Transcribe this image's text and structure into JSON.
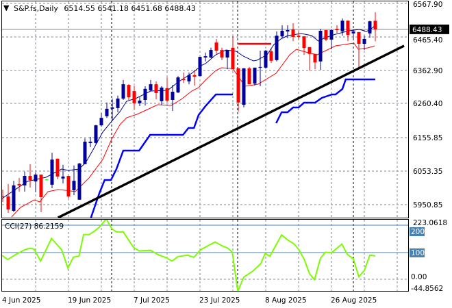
{
  "header": {
    "symbol_timeframe": "S&P.fs,Daily",
    "open": "6514.55",
    "high": "6541.18",
    "low": "6451.68",
    "close": "6488.43"
  },
  "price_axis": {
    "labels": [
      "6567.90",
      "6465.40",
      "6362.90",
      "6260.40",
      "6155.85",
      "6053.35",
      "5950.85"
    ],
    "current_price": "6488.43"
  },
  "cci_panel": {
    "label": "CCI(27) 86.2159",
    "max_label": "223.0618",
    "level_200": "200",
    "level_100": "100",
    "zero_label": "0.00",
    "min_label": "-44.8562"
  },
  "time_axis": {
    "labels": [
      "4 Jun 2025",
      "19 Jun 2025",
      "7 Jul 2025",
      "23 Jul 2025",
      "8 Aug 2025",
      "26 Aug 2025"
    ]
  },
  "colors": {
    "bull": "#00009c",
    "bear": "#ff0000",
    "doji": "#00ff00",
    "ma_fast": "#000080",
    "ma_slow": "#ff0000",
    "trail": "#0000ff",
    "trendline": "#000000",
    "resistance": "#ff0000",
    "cci": "#7cfc00",
    "level": "#4682b4"
  },
  "chart_data": {
    "type": "candlestick",
    "title": "S&P.fs,Daily",
    "ylim": [
      5950.85,
      6567.9
    ],
    "y_ticks": [
      6567.9,
      6465.4,
      6362.9,
      6260.4,
      6155.85,
      6053.35,
      5950.85
    ],
    "x_tick_indices": [
      0,
      12,
      24,
      36,
      48,
      60
    ],
    "grid": true,
    "ohlc": [
      [
        5976,
        5997,
        5959,
        5974
      ],
      [
        5976,
        6014,
        5926,
        5936
      ],
      [
        5932,
        6024,
        5928,
        6010
      ],
      [
        6014,
        6033,
        5991,
        6010
      ],
      [
        6010,
        6052,
        5991,
        6039
      ],
      [
        6039,
        6075,
        6003,
        6026
      ],
      [
        6022,
        6050,
        5989,
        6043
      ],
      [
        6043,
        6043,
        5928,
        5974
      ],
      [
        6028,
        6030,
        6027,
        6028
      ],
      [
        6012,
        6110,
        6001,
        6089
      ],
      [
        6092,
        6092,
        6029,
        6037
      ],
      [
        6031,
        6073,
        6016,
        6037
      ],
      [
        6039,
        6039,
        5970,
        5976
      ],
      [
        5995,
        6071,
        5980,
        6024
      ],
      [
        5966,
        6079,
        5966,
        6077
      ],
      [
        6075,
        6154,
        6075,
        6144
      ],
      [
        6140,
        6159,
        6127,
        6144
      ],
      [
        6140,
        6196,
        6138,
        6194
      ],
      [
        6194,
        6232,
        6190,
        6217
      ],
      [
        6222,
        6264,
        6217,
        6245
      ],
      [
        6245,
        6276,
        6207,
        6249
      ],
      [
        6247,
        6285,
        6234,
        6276
      ],
      [
        6276,
        6333,
        6272,
        6320
      ],
      [
        6318,
        6320,
        6272,
        6280
      ],
      [
        6299,
        6314,
        6243,
        6262
      ],
      [
        6262,
        6280,
        6253,
        6270
      ],
      [
        6272,
        6314,
        6255,
        6306
      ],
      [
        6301,
        6333,
        6299,
        6320
      ],
      [
        6320,
        6329,
        6274,
        6293
      ],
      [
        6268,
        6314,
        6257,
        6310
      ],
      [
        6308,
        6341,
        6264,
        6270
      ],
      [
        6272,
        6318,
        6238,
        6297
      ],
      [
        6295,
        6345,
        6293,
        6341
      ],
      [
        6337,
        6356,
        6324,
        6333
      ],
      [
        6329,
        6356,
        6320,
        6348
      ],
      [
        6348,
        6364,
        6316,
        6343
      ],
      [
        6345,
        6404,
        6345,
        6404
      ],
      [
        6402,
        6417,
        6390,
        6406
      ],
      [
        6402,
        6432,
        6400,
        6425
      ],
      [
        6448,
        6459,
        6413,
        6423
      ],
      [
        6425,
        6432,
        6394,
        6402
      ],
      [
        6402,
        6425,
        6366,
        6425
      ],
      [
        6432,
        6467,
        6366,
        6366
      ],
      [
        6369,
        6369,
        6236,
        6264
      ],
      [
        6257,
        6369,
        6249,
        6369
      ],
      [
        6369,
        6373,
        6320,
        6320
      ],
      [
        6322,
        6371,
        6316,
        6371
      ],
      [
        6371,
        6423,
        6314,
        6373
      ],
      [
        6371,
        6425,
        6369,
        6423
      ],
      [
        6421,
        6427,
        6385,
        6392
      ],
      [
        6394,
        6482,
        6390,
        6469
      ],
      [
        6467,
        6501,
        6461,
        6484
      ],
      [
        6482,
        6501,
        6461,
        6486
      ],
      [
        6488,
        6507,
        6452,
        6465
      ],
      [
        6469,
        6482,
        6457,
        6465
      ],
      [
        6467,
        6467,
        6410,
        6431
      ],
      [
        6434,
        6434,
        6362,
        6413
      ],
      [
        6413,
        6413,
        6366,
        6387
      ],
      [
        6390,
        6490,
        6364,
        6484
      ],
      [
        6486,
        6486,
        6452,
        6457
      ],
      [
        6457,
        6488,
        6427,
        6486
      ],
      [
        6490,
        6501,
        6478,
        6486
      ],
      [
        6482,
        6522,
        6469,
        6515
      ],
      [
        6515,
        6515,
        6452,
        6471
      ],
      [
        6476,
        6488,
        6457,
        6482
      ],
      [
        6480,
        6480,
        6369,
        6444
      ],
      [
        6444,
        6469,
        6425,
        6459
      ],
      [
        6476,
        6515,
        6463,
        6513
      ],
      [
        6514.55,
        6541.18,
        6451.68,
        6488.43
      ]
    ],
    "ma_fast": [
      [
        -0.5,
        5965.5
      ],
      [
        4.5,
        6022.2
      ],
      [
        7.9,
        6034.8
      ],
      [
        10.75,
        6060
      ],
      [
        12,
        6055.8
      ],
      [
        13.9,
        6060
      ],
      [
        15.1,
        6078.9
      ],
      [
        16.4,
        6116.7
      ],
      [
        18.25,
        6173.3
      ],
      [
        19.9,
        6206.9
      ],
      [
        21.4,
        6236.3
      ],
      [
        22.6,
        6267.8
      ],
      [
        24.5,
        6278.3
      ],
      [
        27,
        6299.3
      ],
      [
        30.1,
        6301.4
      ],
      [
        32,
        6326.6
      ],
      [
        34.5,
        6353.8
      ],
      [
        36.4,
        6379
      ],
      [
        37,
        6383.2
      ],
      [
        38.9,
        6410.5
      ],
      [
        40.75,
        6425.2
      ],
      [
        42.6,
        6421
      ],
      [
        43.9,
        6406.3
      ],
      [
        45.75,
        6391.6
      ],
      [
        46.4,
        6393.7
      ],
      [
        48.25,
        6410.5
      ],
      [
        49.5,
        6442
      ],
      [
        50.75,
        6458.8
      ],
      [
        52,
        6469.3
      ],
      [
        54.5,
        6475.6
      ],
      [
        56.4,
        6469.3
      ],
      [
        57.6,
        6452.5
      ],
      [
        58.9,
        6463
      ],
      [
        60.75,
        6473.5
      ],
      [
        63.25,
        6484
      ],
      [
        65.1,
        6488.2
      ],
      [
        66.4,
        6481.9
      ],
      [
        67.6,
        6494.4
      ],
      [
        68,
        6502.8
      ]
    ],
    "ma_slow": [
      [
        1.6,
        5913.1
      ],
      [
        3.25,
        5942.5
      ],
      [
        5.75,
        5965.5
      ],
      [
        6.75,
        5959.3
      ],
      [
        8.25,
        5990.7
      ],
      [
        10.1,
        5997
      ],
      [
        11.4,
        5994.9
      ],
      [
        13.25,
        5990.7
      ],
      [
        14.1,
        6005.4
      ],
      [
        15.75,
        6032.7
      ],
      [
        18.25,
        6089.4
      ],
      [
        19.9,
        6152.3
      ],
      [
        21.4,
        6196.4
      ],
      [
        22.6,
        6217.4
      ],
      [
        24.5,
        6227.9
      ],
      [
        26.4,
        6242.6
      ],
      [
        28.25,
        6257.3
      ],
      [
        30.75,
        6255.2
      ],
      [
        32.6,
        6274.1
      ],
      [
        34.5,
        6299.3
      ],
      [
        35.75,
        6309.8
      ],
      [
        37,
        6332.8
      ],
      [
        38.9,
        6362.2
      ],
      [
        39.9,
        6370.6
      ],
      [
        42,
        6368.5
      ],
      [
        42.4,
        6358
      ],
      [
        44.25,
        6313.9
      ],
      [
        46.6,
        6320.2
      ],
      [
        49.9,
        6353.8
      ],
      [
        52.4,
        6410.5
      ],
      [
        53.6,
        6427.3
      ],
      [
        54.9,
        6421
      ],
      [
        55.75,
        6416.8
      ],
      [
        57.4,
        6410.5
      ],
      [
        60.75,
        6437.8
      ],
      [
        62.4,
        6442
      ],
      [
        64.1,
        6446.2
      ],
      [
        64.9,
        6427.3
      ],
      [
        66.6,
        6431.5
      ],
      [
        67.9,
        6437.8
      ]
    ],
    "trail_segments": [
      [
        [
          16.1,
          5911
        ],
        [
          17.6,
          5984.4
        ],
        [
          18.6,
          6026.4
        ],
        [
          19.75,
          6026.4
        ],
        [
          20.75,
          6060
        ],
        [
          22,
          6116.7
        ],
        [
          24.9,
          6116.7
        ],
        [
          26.9,
          6165
        ],
        [
          32.9,
          6165
        ],
        [
          33.9,
          6185.9
        ],
        [
          34.9,
          6185.9
        ],
        [
          35.75,
          6225.8
        ],
        [
          37,
          6253.1
        ],
        [
          38.9,
          6288.8
        ],
        [
          42,
          6288.8
        ]
      ],
      [
        [
          49.9,
          6200.6
        ],
        [
          50.9,
          6234.2
        ],
        [
          52,
          6234.2
        ],
        [
          53,
          6248.9
        ],
        [
          54,
          6248.9
        ],
        [
          55,
          6263.6
        ],
        [
          57,
          6263.6
        ],
        [
          58.25,
          6278.3
        ],
        [
          60.1,
          6288.8
        ],
        [
          60.75,
          6288.8
        ],
        [
          62,
          6305.6
        ],
        [
          62.6,
          6335
        ],
        [
          68,
          6335
        ]
      ]
    ],
    "resistance": {
      "from_index": 43,
      "to_index": 49,
      "price": 6444.1
    },
    "trendline": [
      [
        10.1,
        5911
      ],
      [
        73.25,
        6437.8
      ]
    ],
    "current_price": 6488.43,
    "cci": {
      "period": 27,
      "ylim": [
        -44.8562,
        223.0618
      ],
      "levels": [
        200,
        100,
        0
      ],
      "points": [
        [
          -0.1,
          88
        ],
        [
          0.9,
          73
        ],
        [
          2.4,
          92
        ],
        [
          4,
          109
        ],
        [
          5,
          115
        ],
        [
          5.75,
          111
        ],
        [
          6.9,
          67
        ],
        [
          8.9,
          151
        ],
        [
          10.75,
          109
        ],
        [
          11.9,
          41
        ],
        [
          12.9,
          82
        ],
        [
          13.9,
          85
        ],
        [
          14.75,
          165
        ],
        [
          15.75,
          165
        ],
        [
          16.75,
          178
        ],
        [
          17.6,
          192
        ],
        [
          18.9,
          223
        ],
        [
          19.9,
          187
        ],
        [
          20.75,
          175
        ],
        [
          22,
          175
        ],
        [
          23.9,
          117
        ],
        [
          24.9,
          105
        ],
        [
          27,
          107
        ],
        [
          28.25,
          92
        ],
        [
          29.9,
          79
        ],
        [
          30.9,
          67
        ],
        [
          32,
          84
        ],
        [
          33.75,
          89
        ],
        [
          34.9,
          81
        ],
        [
          36.1,
          109
        ],
        [
          38.75,
          138
        ],
        [
          40.1,
          123
        ],
        [
          41.1,
          115
        ],
        [
          41.9,
          100
        ],
        [
          42.9,
          -45
        ],
        [
          44,
          8
        ],
        [
          45.6,
          29
        ],
        [
          47.1,
          58
        ],
        [
          47.9,
          96
        ],
        [
          48.75,
          85
        ],
        [
          50.9,
          164
        ],
        [
          52.1,
          144
        ],
        [
          53.1,
          132
        ],
        [
          54,
          111
        ],
        [
          55,
          75
        ],
        [
          56,
          20
        ],
        [
          56.9,
          -1
        ],
        [
          58,
          78
        ],
        [
          58.9,
          100
        ],
        [
          60,
          98
        ],
        [
          61.9,
          130
        ],
        [
          62.9,
          92
        ],
        [
          64,
          75
        ],
        [
          65,
          9
        ],
        [
          66,
          33
        ],
        [
          67,
          89
        ],
        [
          68,
          86.2159
        ]
      ]
    }
  }
}
